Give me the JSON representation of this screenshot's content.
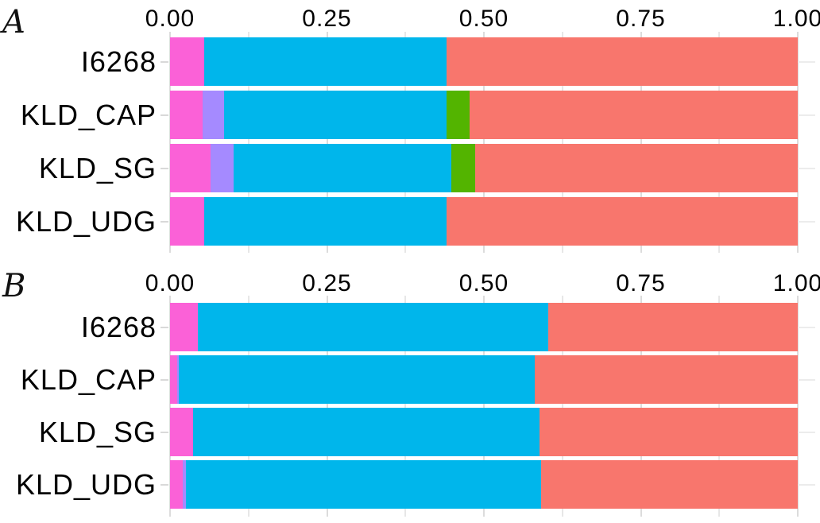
{
  "figure": {
    "background": "#ffffff",
    "panel_labels": [
      "A",
      "B"
    ]
  },
  "chart_data": [
    {
      "type": "bar",
      "orientation": "horizontal",
      "stacked": true,
      "panel_label": "A",
      "categories": [
        "I6268",
        "KLD_CAP",
        "KLD_SG",
        "KLD_UDG"
      ],
      "series": [
        {
          "name": "magenta",
          "color": "#FB61D7",
          "values": [
            0.055,
            0.052,
            0.065,
            0.055
          ]
        },
        {
          "name": "purple",
          "color": "#A58AFF",
          "values": [
            0.0,
            0.034,
            0.036,
            0.0
          ]
        },
        {
          "name": "cyan",
          "color": "#00B6EB",
          "values": [
            0.385,
            0.355,
            0.347,
            0.386
          ]
        },
        {
          "name": "green",
          "color": "#53B400",
          "values": [
            0.0,
            0.036,
            0.038,
            0.0
          ]
        },
        {
          "name": "salmon",
          "color": "#F8766D",
          "values": [
            0.56,
            0.523,
            0.514,
            0.559
          ]
        }
      ],
      "xlim": [
        0,
        1
      ],
      "x_ticks": [
        0,
        0.25,
        0.5,
        0.75,
        1
      ],
      "x_tick_labels": [
        "0.00",
        "0.25",
        "0.50",
        "0.75",
        "1.00"
      ],
      "x_minor_tick_step": 0.125,
      "axis_position": "top",
      "grid": true,
      "legend": false,
      "title": "",
      "xlabel": "",
      "ylabel": ""
    },
    {
      "type": "bar",
      "orientation": "horizontal",
      "stacked": true,
      "panel_label": "B",
      "categories": [
        "I6268",
        "KLD_CAP",
        "KLD_SG",
        "KLD_UDG"
      ],
      "series": [
        {
          "name": "magenta",
          "color": "#FB61D7",
          "values": [
            0.044,
            0.011,
            0.037,
            0.02
          ]
        },
        {
          "name": "purple",
          "color": "#A58AFF",
          "values": [
            0.0,
            0.003,
            0.0,
            0.005
          ]
        },
        {
          "name": "cyan",
          "color": "#00B6EB",
          "values": [
            0.558,
            0.567,
            0.551,
            0.566
          ]
        },
        {
          "name": "green",
          "color": "#53B400",
          "values": [
            0.0,
            0.0,
            0.0,
            0.0
          ]
        },
        {
          "name": "salmon",
          "color": "#F8766D",
          "values": [
            0.398,
            0.419,
            0.412,
            0.409
          ]
        }
      ],
      "xlim": [
        0,
        1
      ],
      "x_ticks": [
        0,
        0.25,
        0.5,
        0.75,
        1
      ],
      "x_tick_labels": [
        "0.00",
        "0.25",
        "0.50",
        "0.75",
        "1.00"
      ],
      "x_minor_tick_step": 0.125,
      "axis_position": "top",
      "grid": true,
      "legend": false,
      "title": "",
      "xlabel": "",
      "ylabel": ""
    }
  ],
  "colors": {
    "grid_major": "#dcdcdc",
    "grid_minor": "#e7e7e7",
    "axis_text": "#000000"
  }
}
